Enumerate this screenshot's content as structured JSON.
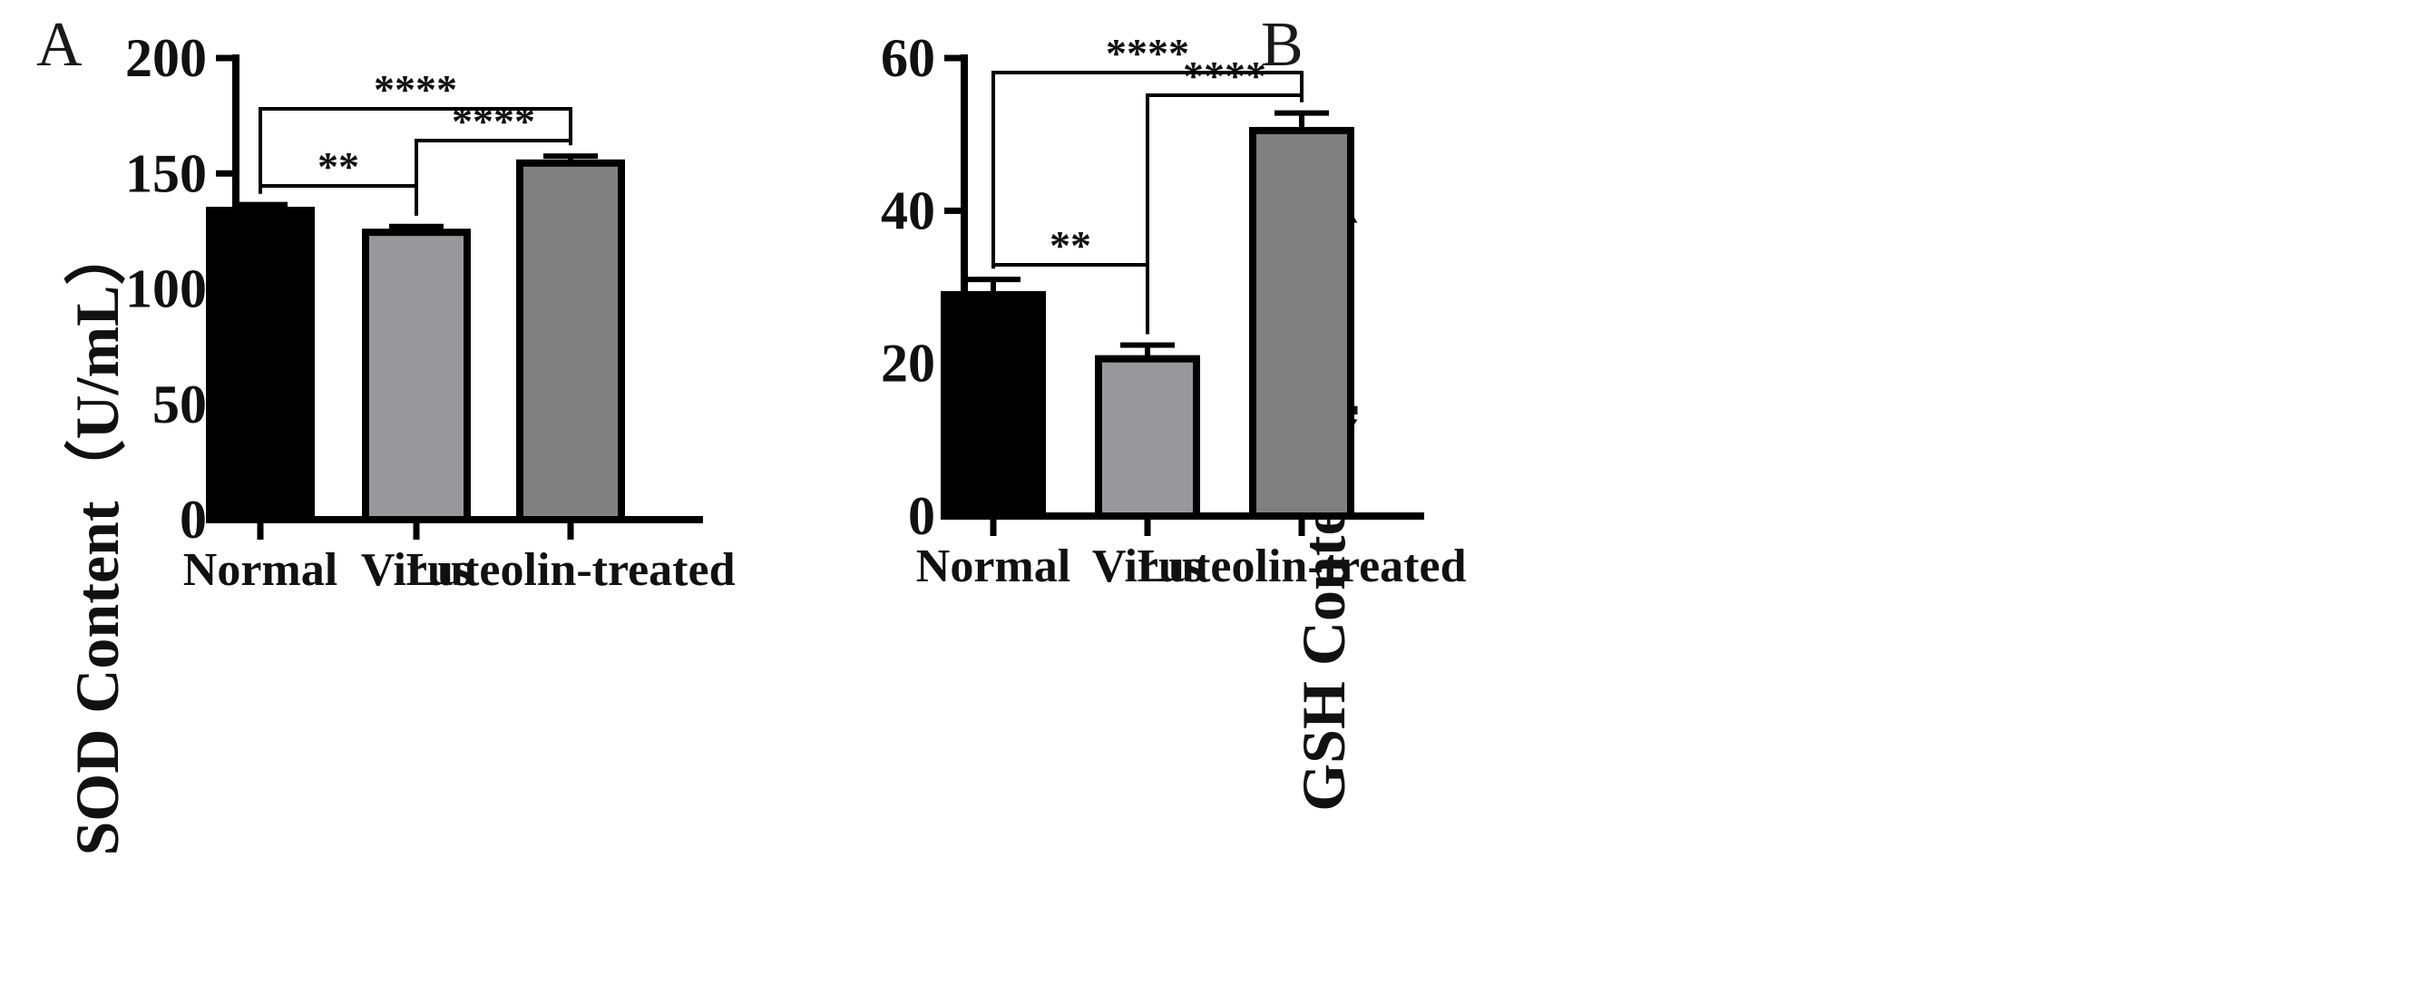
{
  "chart_data": [
    {
      "panel": "A",
      "type": "bar",
      "categories": [
        "Normal",
        "Virus",
        "Luteolin-treated"
      ],
      "values": [
        134,
        124.5,
        154.5
      ],
      "errors": [
        2.5,
        2.5,
        3
      ],
      "colors": [
        "#000000",
        "#98989a",
        "#808080"
      ],
      "ylabel": "SOD Content（U/mL）",
      "ylim": [
        0,
        200
      ],
      "yticks": [
        "0",
        "50",
        "100",
        "150",
        "200"
      ],
      "comparisons": [
        {
          "from": 0,
          "to": 1,
          "label": "**"
        },
        {
          "from": 1,
          "to": 2,
          "label": "****"
        },
        {
          "from": 0,
          "to": 2,
          "label": "****"
        }
      ]
    },
    {
      "panel": "B",
      "type": "bar",
      "categories": [
        "Normal",
        "Virus",
        "Luteolin-treated"
      ],
      "values": [
        29,
        20.6,
        50.5
      ],
      "errors": [
        2,
        1.8,
        2.3
      ],
      "colors": [
        "#000000",
        "#98989a",
        "#808080"
      ],
      "ylabel": "GSH Content (μmol/L)",
      "ylim": [
        0,
        60
      ],
      "yticks": [
        "0",
        "20",
        "40",
        "60"
      ],
      "comparisons": [
        {
          "from": 0,
          "to": 1,
          "label": "**"
        },
        {
          "from": 1,
          "to": 2,
          "label": "****"
        },
        {
          "from": 0,
          "to": 2,
          "label": "****"
        }
      ]
    }
  ]
}
